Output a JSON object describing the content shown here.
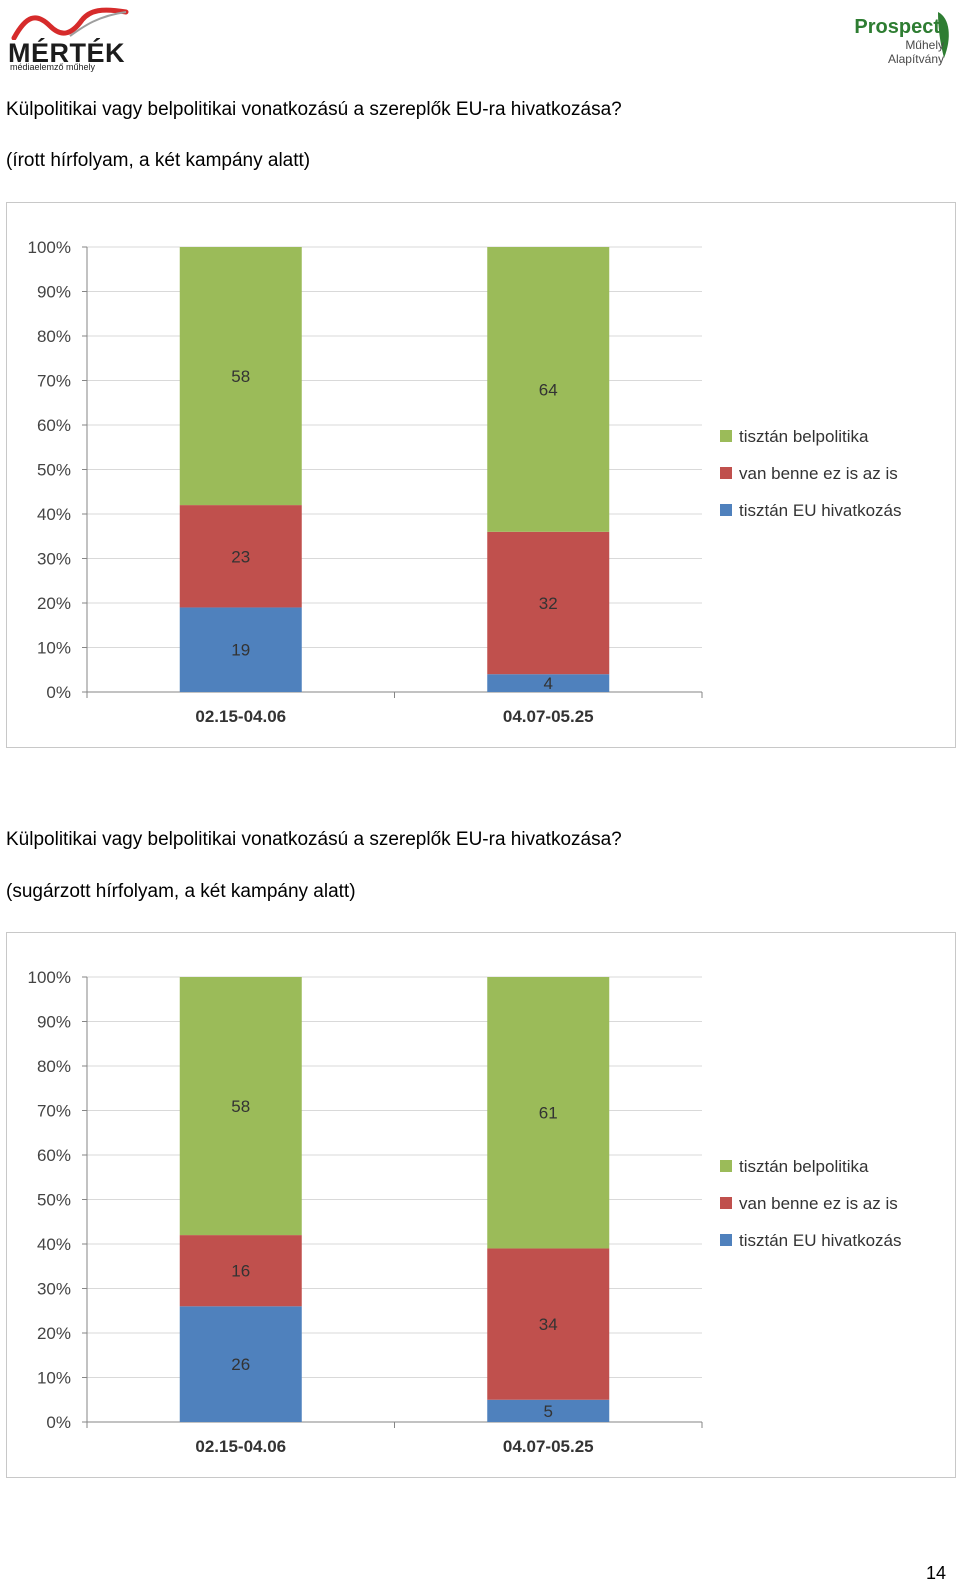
{
  "header": {
    "logo_left": {
      "name": "MÉRTÉK",
      "subtitle": "médiaelemző műhely"
    },
    "logo_right": {
      "name": "Prospect",
      "line2": "Műhely",
      "line3": "Alapítvány"
    }
  },
  "colors": {
    "tisztan_belpolitika": "#9BBB59",
    "van_benne": "#C0504D",
    "tisztan_eu": "#4F81BD",
    "grid": "#d9d9d9",
    "axis": "#868686"
  },
  "sections": [
    {
      "title": "Külpolitikai vagy belpolitikai vonatkozású a szereplők EU-ra hivatkozása?",
      "subtitle": "(írott hírfolyam, a két kampány alatt)"
    },
    {
      "title": "Külpolitikai vagy belpolitikai vonatkozású a szereplők EU-ra hivatkozása?",
      "subtitle": "(sugárzott hírfolyam, a két kampány alatt)"
    }
  ],
  "chart_data": [
    {
      "type": "bar",
      "stacked": "percent",
      "categories": [
        "02.15-04.06",
        "04.07-05.25"
      ],
      "series": [
        {
          "name": "tisztán EU hivatkozás",
          "values": [
            19,
            4
          ],
          "color": "#4F81BD"
        },
        {
          "name": "van benne ez is az is",
          "values": [
            23,
            32
          ],
          "color": "#C0504D"
        },
        {
          "name": "tisztán belpolitika",
          "values": [
            58,
            64
          ],
          "color": "#9BBB59"
        }
      ],
      "y_ticks": [
        "0%",
        "10%",
        "20%",
        "30%",
        "40%",
        "50%",
        "60%",
        "70%",
        "80%",
        "90%",
        "100%"
      ],
      "ylim": [
        0,
        100
      ],
      "grid": true,
      "legend": "right",
      "legend_order": [
        "tisztán belpolitika",
        "van benne ez is az is",
        "tisztán EU hivatkozás"
      ]
    },
    {
      "type": "bar",
      "stacked": "percent",
      "categories": [
        "02.15-04.06",
        "04.07-05.25"
      ],
      "series": [
        {
          "name": "tisztán EU hivatkozás",
          "values": [
            26,
            5
          ],
          "color": "#4F81BD"
        },
        {
          "name": "van benne ez is az is",
          "values": [
            16,
            34
          ],
          "color": "#C0504D"
        },
        {
          "name": "tisztán belpolitika",
          "values": [
            58,
            61
          ],
          "color": "#9BBB59"
        }
      ],
      "y_ticks": [
        "0%",
        "10%",
        "20%",
        "30%",
        "40%",
        "50%",
        "60%",
        "70%",
        "80%",
        "90%",
        "100%"
      ],
      "ylim": [
        0,
        100
      ],
      "grid": true,
      "legend": "right",
      "legend_order": [
        "tisztán belpolitika",
        "van benne ez is az is",
        "tisztán EU hivatkozás"
      ]
    }
  ],
  "page_number": "14"
}
